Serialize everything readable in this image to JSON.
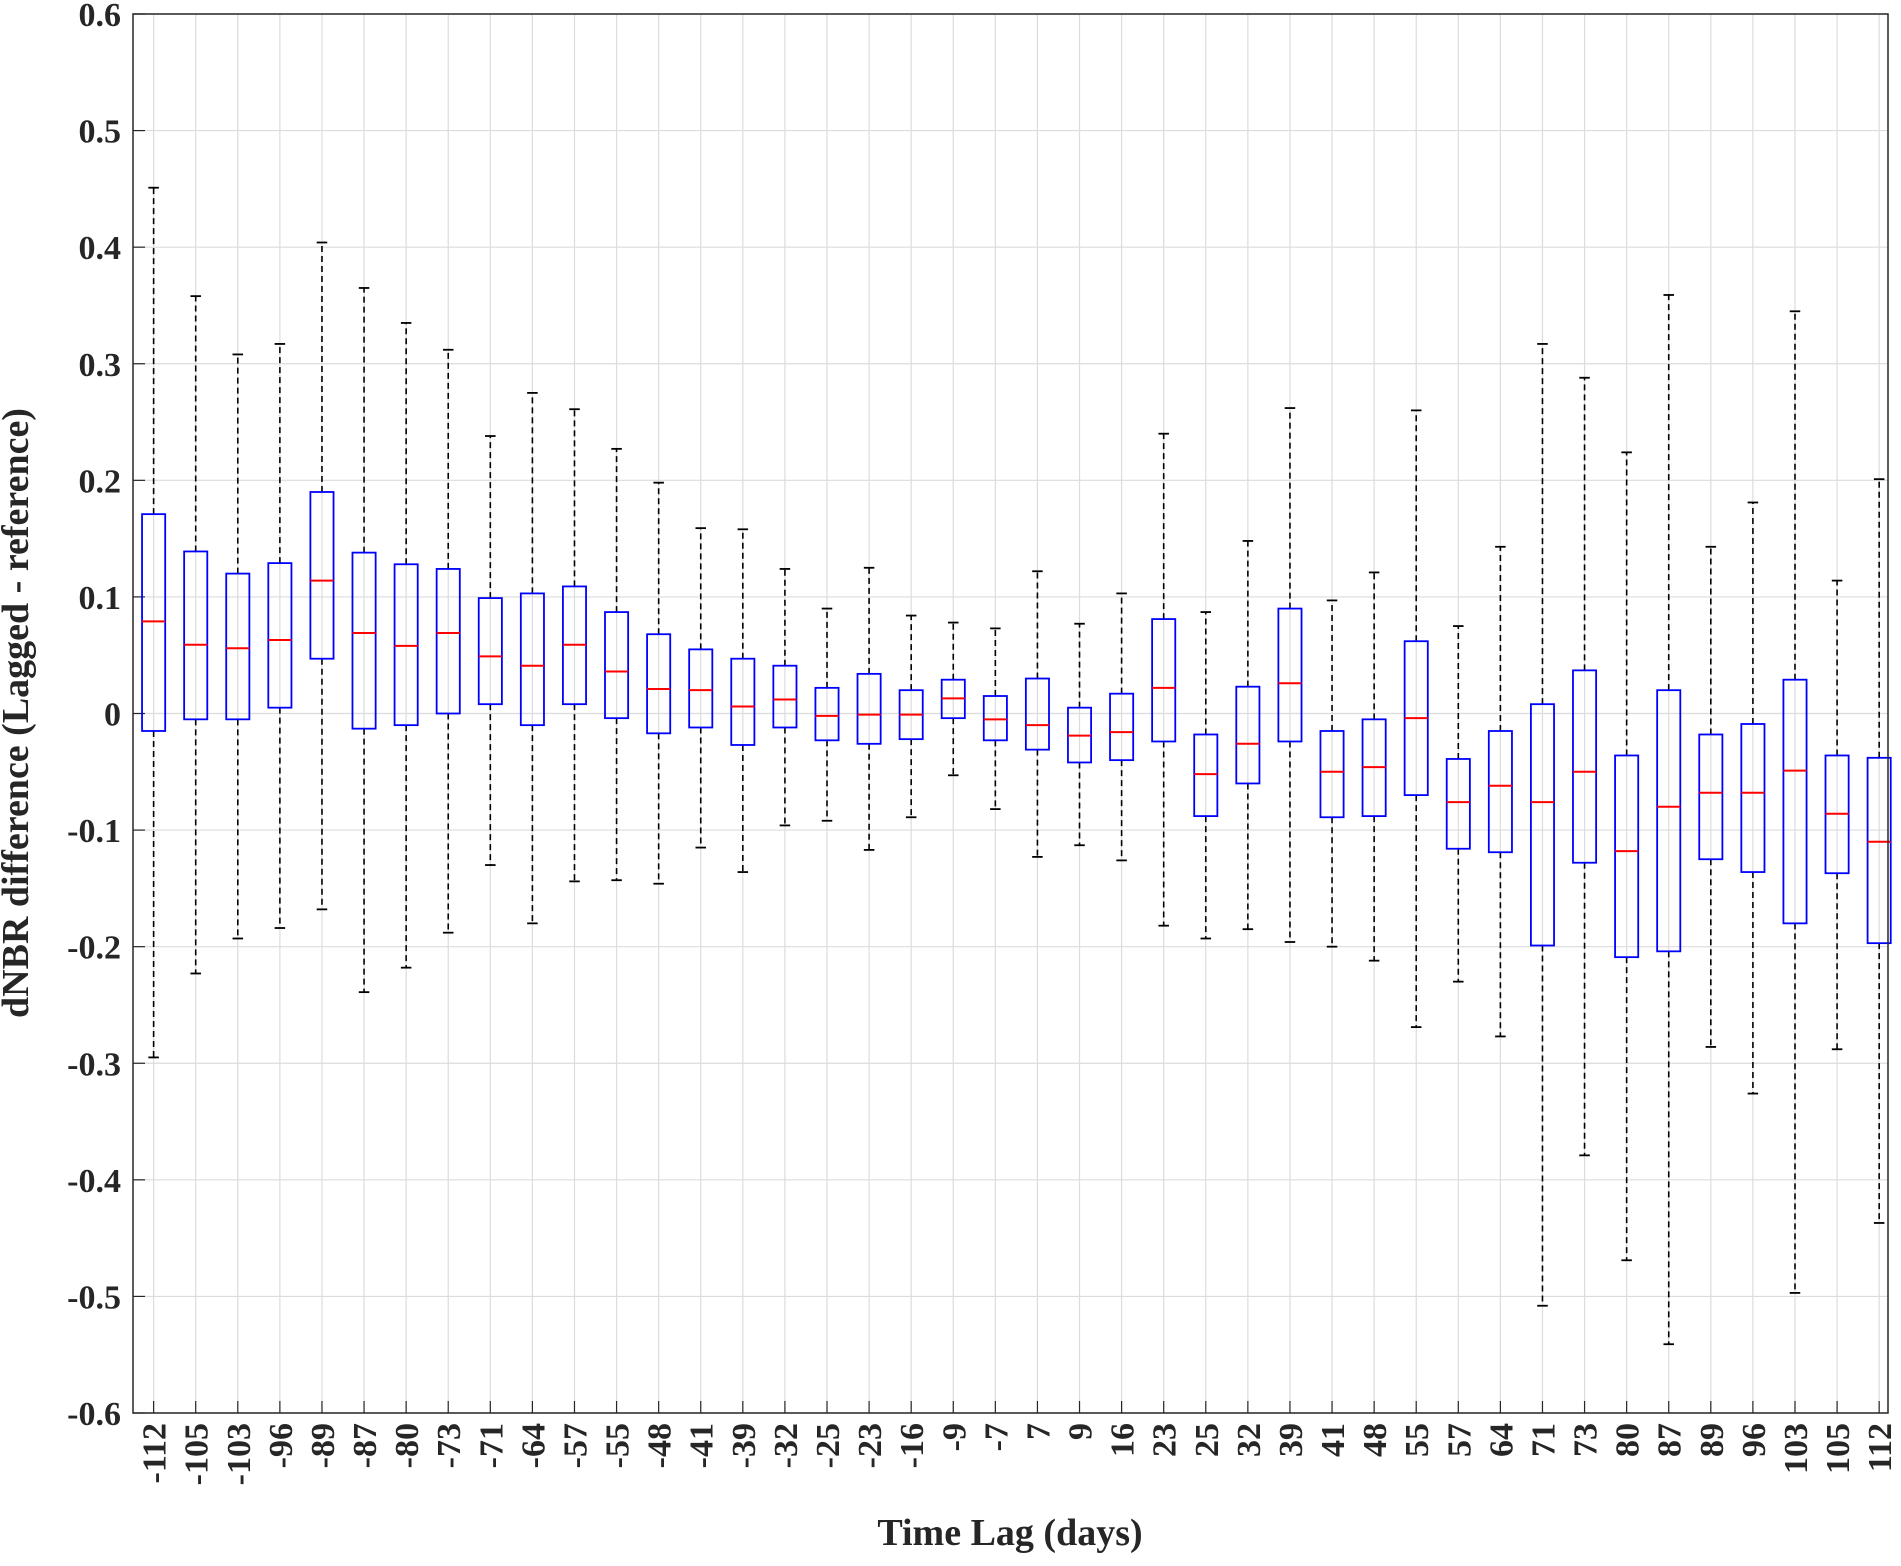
{
  "chart_data": {
    "type": "box",
    "x_label": "Time Lag (days)",
    "y_label": "dNBR difference (Lagged - reference)",
    "categories": [
      "-112",
      "-105",
      "-103",
      "-96",
      "-89",
      "-87",
      "-80",
      "-73",
      "-71",
      "-64",
      "-57",
      "-55",
      "-48",
      "-41",
      "-39",
      "-32",
      "-25",
      "-23",
      "-16",
      "-9",
      "-7",
      "7",
      "9",
      "16",
      "23",
      "25",
      "32",
      "39",
      "41",
      "48",
      "55",
      "57",
      "64",
      "71",
      "73",
      "80",
      "87",
      "89",
      "96",
      "103",
      "105",
      "112"
    ],
    "whisker_high": [
      0.451,
      0.358,
      0.308,
      0.317,
      0.404,
      0.365,
      0.335,
      0.312,
      0.238,
      0.275,
      0.261,
      0.227,
      0.198,
      0.159,
      0.158,
      0.124,
      0.09,
      0.125,
      0.084,
      0.078,
      0.073,
      0.122,
      0.077,
      0.103,
      0.24,
      0.087,
      0.148,
      0.262,
      0.097,
      0.121,
      0.26,
      0.075,
      0.143,
      0.317,
      0.288,
      0.224,
      0.359,
      0.143,
      0.181,
      0.345,
      0.114,
      0.201
    ],
    "q3": [
      0.171,
      0.139,
      0.12,
      0.129,
      0.19,
      0.138,
      0.128,
      0.124,
      0.099,
      0.103,
      0.109,
      0.087,
      0.068,
      0.055,
      0.047,
      0.041,
      0.022,
      0.034,
      0.02,
      0.029,
      0.015,
      0.03,
      0.005,
      0.017,
      0.081,
      -0.018,
      0.023,
      0.09,
      -0.015,
      -0.005,
      0.062,
      -0.039,
      -0.015,
      0.008,
      0.037,
      -0.036,
      0.02,
      -0.018,
      -0.009,
      0.029,
      -0.036,
      -0.038
    ],
    "median": [
      0.079,
      0.059,
      0.056,
      0.063,
      0.114,
      0.069,
      0.058,
      0.069,
      0.049,
      0.041,
      0.059,
      0.036,
      0.021,
      0.02,
      0.006,
      0.012,
      -0.002,
      -0.001,
      -0.001,
      0.013,
      -0.005,
      -0.01,
      -0.019,
      -0.016,
      0.022,
      -0.052,
      -0.026,
      0.026,
      -0.05,
      -0.046,
      -0.004,
      -0.076,
      -0.062,
      -0.076,
      -0.05,
      -0.118,
      -0.08,
      -0.068,
      -0.068,
      -0.049,
      -0.086,
      -0.11
    ],
    "q1": [
      -0.015,
      -0.005,
      -0.005,
      0.005,
      0.047,
      -0.013,
      -0.01,
      0.0,
      0.008,
      -0.01,
      0.008,
      -0.004,
      -0.017,
      -0.012,
      -0.027,
      -0.012,
      -0.023,
      -0.026,
      -0.022,
      -0.004,
      -0.023,
      -0.031,
      -0.042,
      -0.04,
      -0.024,
      -0.088,
      -0.06,
      -0.024,
      -0.089,
      -0.088,
      -0.07,
      -0.116,
      -0.119,
      -0.199,
      -0.128,
      -0.209,
      -0.204,
      -0.125,
      -0.136,
      -0.18,
      -0.137,
      -0.197
    ],
    "whisker_low": [
      -0.295,
      -0.223,
      -0.193,
      -0.184,
      -0.168,
      -0.239,
      -0.218,
      -0.188,
      -0.13,
      -0.18,
      -0.144,
      -0.143,
      -0.146,
      -0.115,
      -0.136,
      -0.096,
      -0.092,
      -0.117,
      -0.089,
      -0.053,
      -0.082,
      -0.123,
      -0.113,
      -0.126,
      -0.182,
      -0.193,
      -0.185,
      -0.196,
      -0.2,
      -0.212,
      -0.269,
      -0.23,
      -0.277,
      -0.508,
      -0.379,
      -0.469,
      -0.541,
      -0.286,
      -0.326,
      -0.497,
      -0.288,
      -0.437
    ],
    "box_color": "#0000ff",
    "median_color": "#ff0000",
    "whisker_color": "#000000",
    "ylim": [
      -0.6,
      0.6
    ],
    "yticks": [
      -0.6,
      -0.5,
      -0.4,
      -0.3,
      -0.2,
      -0.1,
      0,
      0.1,
      0.2,
      0.3,
      0.4,
      0.5,
      0.6
    ],
    "grid": true
  }
}
